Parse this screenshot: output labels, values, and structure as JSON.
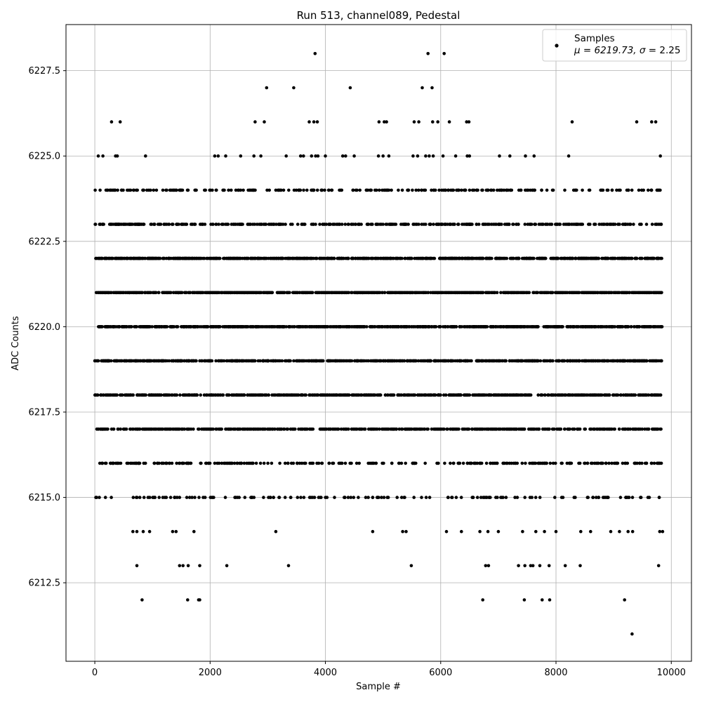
{
  "chart_data": {
    "type": "scatter",
    "title": "Run 513, channel089, Pedestal",
    "xlabel": "Sample #",
    "ylabel": "ADC Counts",
    "xlim": [
      -500,
      10350
    ],
    "ylim": [
      6210.2,
      6228.85
    ],
    "xticks": [
      0,
      2000,
      4000,
      6000,
      8000,
      10000
    ],
    "yticks": [
      6212.5,
      6215.0,
      6217.5,
      6220.0,
      6222.5,
      6225.0,
      6227.5
    ],
    "grid": true,
    "legend": {
      "placement": "top-right",
      "label": "Samples",
      "stats_prefix": "μ = 6219.73, ",
      "stats_sigma": "σ",
      "stats_suffix": " = 2.25"
    },
    "marker_color": "#000000",
    "series": [
      {
        "name": "Samples",
        "points": [
          [
            3820,
            6228
          ],
          [
            5780,
            6228
          ],
          [
            6060,
            6228
          ],
          [
            2980,
            6227
          ],
          [
            3450,
            6227
          ],
          [
            4430,
            6227
          ],
          [
            5680,
            6227
          ],
          [
            5850,
            6227
          ],
          [
            290,
            6226
          ],
          [
            440,
            6226
          ],
          [
            2780,
            6226
          ],
          [
            2940,
            6226
          ],
          [
            3720,
            6226
          ],
          [
            3800,
            6226
          ],
          [
            3860,
            6226
          ],
          [
            4930,
            6226
          ],
          [
            5020,
            6226
          ],
          [
            5060,
            6226
          ],
          [
            5540,
            6226
          ],
          [
            5620,
            6226
          ],
          [
            5860,
            6226
          ],
          [
            5950,
            6226
          ],
          [
            6150,
            6226
          ],
          [
            6450,
            6226
          ],
          [
            6490,
            6226
          ],
          [
            8280,
            6226
          ],
          [
            9400,
            6226
          ],
          [
            9660,
            6226
          ],
          [
            9730,
            6226
          ],
          [
            60,
            6225
          ],
          [
            140,
            6225
          ],
          [
            360,
            6225
          ],
          [
            390,
            6225
          ],
          [
            880,
            6225
          ],
          [
            2080,
            6225
          ],
          [
            2140,
            6225
          ],
          [
            2270,
            6225
          ],
          [
            2530,
            6225
          ],
          [
            2760,
            6225
          ],
          [
            2880,
            6225
          ],
          [
            3320,
            6225
          ],
          [
            3570,
            6225
          ],
          [
            3620,
            6225
          ],
          [
            3760,
            6225
          ],
          [
            3830,
            6225
          ],
          [
            3870,
            6225
          ],
          [
            4000,
            6225
          ],
          [
            4300,
            6225
          ],
          [
            4350,
            6225
          ],
          [
            4500,
            6225
          ],
          [
            4920,
            6225
          ],
          [
            5000,
            6225
          ],
          [
            5100,
            6225
          ],
          [
            5520,
            6225
          ],
          [
            5600,
            6225
          ],
          [
            5740,
            6225
          ],
          [
            5800,
            6225
          ],
          [
            5870,
            6225
          ],
          [
            6040,
            6225
          ],
          [
            6260,
            6225
          ],
          [
            6460,
            6225
          ],
          [
            6500,
            6225
          ],
          [
            7020,
            6225
          ],
          [
            7200,
            6225
          ],
          [
            7470,
            6225
          ],
          [
            7620,
            6225
          ],
          [
            8220,
            6225
          ],
          [
            9810,
            6225
          ],
          [
            3140,
            6214
          ],
          [
            4820,
            6214
          ],
          [
            5340,
            6214
          ],
          [
            5400,
            6214
          ],
          [
            6100,
            6214
          ],
          [
            6360,
            6214
          ],
          [
            6680,
            6214
          ],
          [
            6820,
            6214
          ],
          [
            7000,
            6214
          ],
          [
            7420,
            6214
          ],
          [
            7650,
            6214
          ],
          [
            7800,
            6214
          ],
          [
            8000,
            6214
          ],
          [
            8430,
            6214
          ],
          [
            8600,
            6214
          ],
          [
            8950,
            6214
          ],
          [
            9100,
            6214
          ],
          [
            9250,
            6214
          ],
          [
            9330,
            6214
          ],
          [
            9800,
            6214
          ],
          [
            9850,
            6214
          ],
          [
            660,
            6214
          ],
          [
            730,
            6214
          ],
          [
            840,
            6214
          ],
          [
            950,
            6214
          ],
          [
            1350,
            6214
          ],
          [
            1410,
            6214
          ],
          [
            1720,
            6214
          ],
          [
            730,
            6213
          ],
          [
            1470,
            6213
          ],
          [
            1530,
            6213
          ],
          [
            1620,
            6213
          ],
          [
            1820,
            6213
          ],
          [
            2290,
            6213
          ],
          [
            3360,
            6213
          ],
          [
            5490,
            6213
          ],
          [
            6780,
            6213
          ],
          [
            6830,
            6213
          ],
          [
            7350,
            6213
          ],
          [
            7460,
            6213
          ],
          [
            7560,
            6213
          ],
          [
            7600,
            6213
          ],
          [
            7720,
            6213
          ],
          [
            7880,
            6213
          ],
          [
            8160,
            6213
          ],
          [
            8420,
            6213
          ],
          [
            9780,
            6213
          ],
          [
            820,
            6212
          ],
          [
            1610,
            6212
          ],
          [
            1800,
            6212
          ],
          [
            1820,
            6212
          ],
          [
            6730,
            6212
          ],
          [
            7450,
            6212
          ],
          [
            7760,
            6212
          ],
          [
            7890,
            6212
          ],
          [
            9190,
            6212
          ],
          [
            9320,
            6211
          ]
        ],
        "bands": [
          {
            "y": 6224,
            "x_from": 0,
            "x_to": 9840,
            "count": 250,
            "seed": 11
          },
          {
            "y": 6223,
            "x_from": 0,
            "x_to": 9840,
            "count": 450,
            "seed": 23
          },
          {
            "y": 6222,
            "x_from": 0,
            "x_to": 9840,
            "count": 850,
            "seed": 37
          },
          {
            "y": 6221,
            "x_from": 0,
            "x_to": 9840,
            "count": 900,
            "seed": 41
          },
          {
            "y": 6220,
            "x_from": 0,
            "x_to": 9840,
            "count": 900,
            "seed": 53
          },
          {
            "y": 6219,
            "x_from": 0,
            "x_to": 9840,
            "count": 800,
            "seed": 67
          },
          {
            "y": 6218,
            "x_from": 0,
            "x_to": 9840,
            "count": 700,
            "seed": 71
          },
          {
            "y": 6217,
            "x_from": 0,
            "x_to": 9840,
            "count": 600,
            "seed": 83
          },
          {
            "y": 6216,
            "x_from": 0,
            "x_to": 9840,
            "count": 280,
            "seed": 97
          },
          {
            "y": 6215,
            "x_from": 0,
            "x_to": 9840,
            "count": 160,
            "seed": 101
          }
        ]
      }
    ]
  }
}
